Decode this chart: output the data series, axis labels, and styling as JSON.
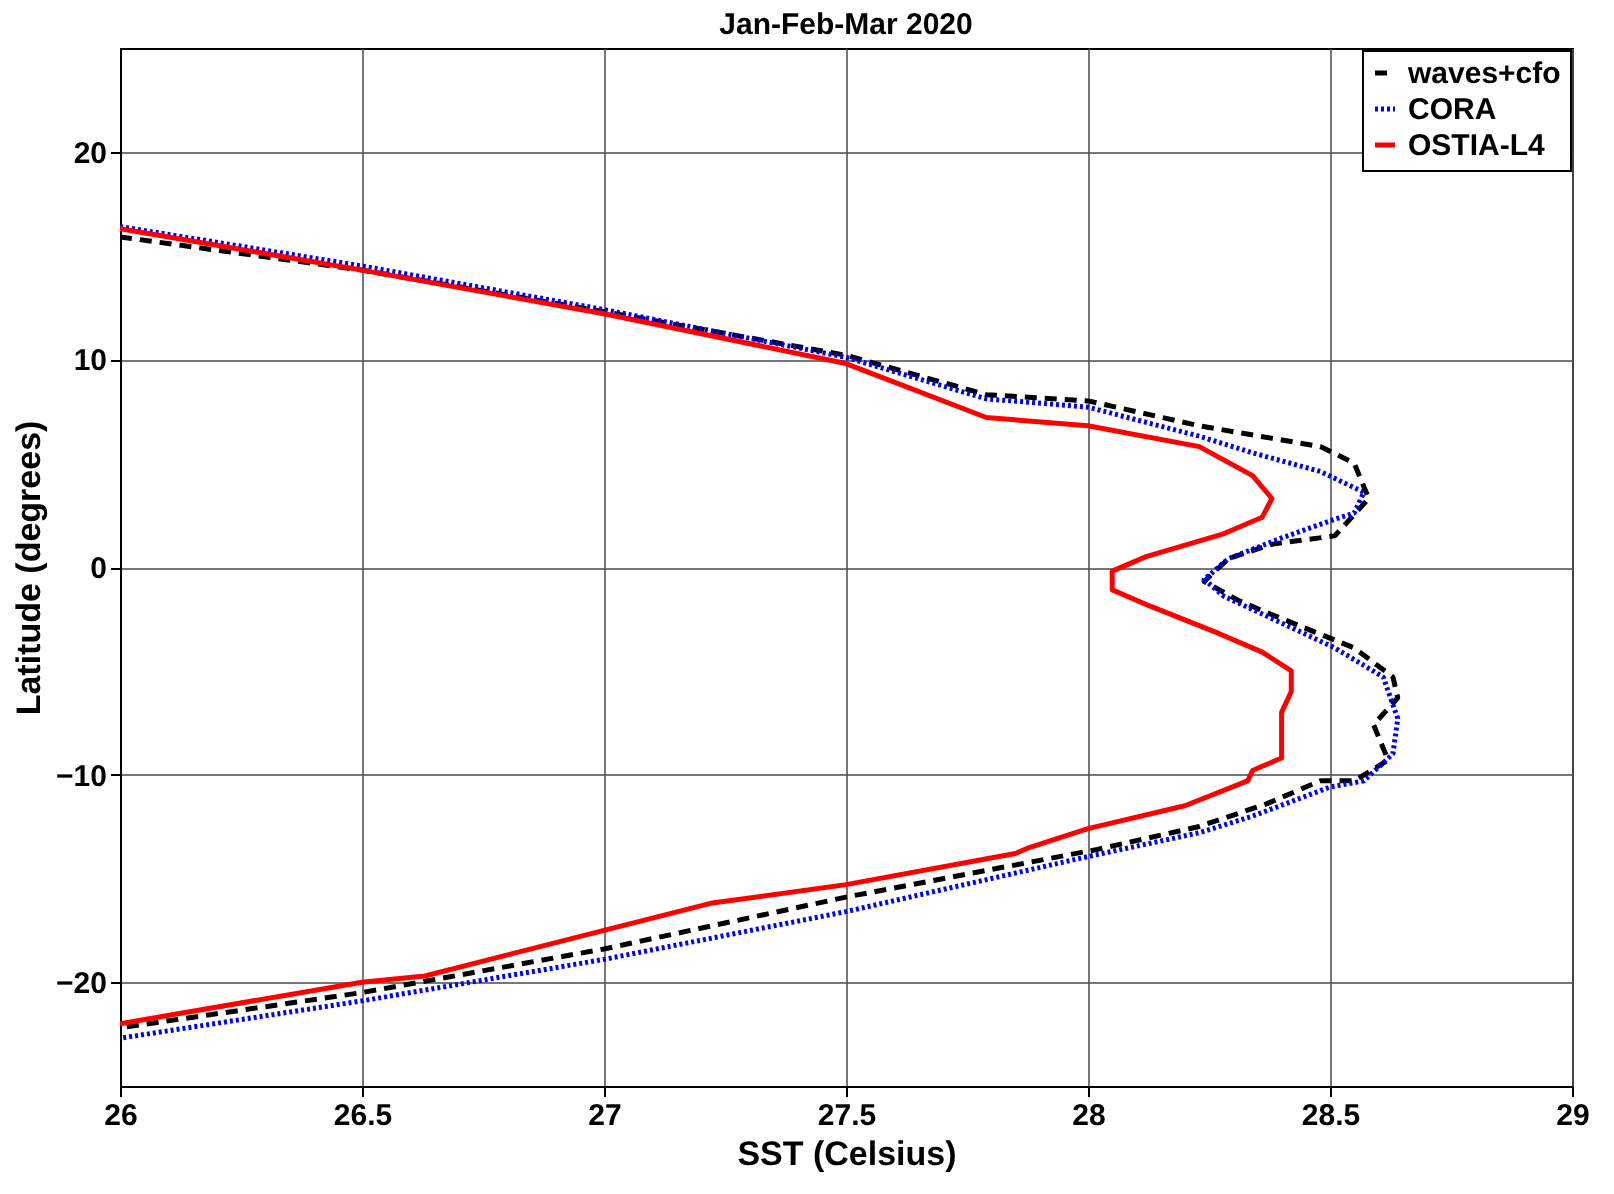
{
  "chart_data": {
    "type": "line",
    "title": "Jan-Feb-Mar 2020",
    "xlabel": "SST (Celsius)",
    "ylabel": "Latitude (degrees)",
    "xlim": [
      26,
      29
    ],
    "xticks": [
      26,
      26.5,
      27,
      27.5,
      28,
      28.5,
      29
    ],
    "ylim": [
      -25,
      25
    ],
    "yticks": [
      -20,
      -10,
      0,
      10,
      20
    ],
    "grid": true,
    "legend": "top right",
    "marker": "none",
    "series": [
      {
        "name": "waves+cfo",
        "color": "#000000",
        "line_style": "dashed",
        "x": [
          26.0,
          26.5,
          27.0,
          27.5,
          27.79,
          28.0,
          28.23,
          28.48,
          28.55,
          28.58,
          28.51,
          28.38,
          28.29,
          28.24,
          28.31,
          28.37,
          28.55,
          28.63,
          28.64,
          28.59,
          28.62,
          28.55,
          28.48,
          28.37,
          28.23,
          28.02,
          27.5,
          27.0,
          26.5,
          26.0
        ],
        "values": [
          15.9,
          14.3,
          12.3,
          10.2,
          8.3,
          8.0,
          6.8,
          5.8,
          5.0,
          3.3,
          1.5,
          1.1,
          0.4,
          -0.7,
          -1.6,
          -2.2,
          -3.9,
          -5.3,
          -6.3,
          -7.6,
          -9.3,
          -10.3,
          -10.3,
          -11.4,
          -12.5,
          -13.6,
          -15.9,
          -18.4,
          -20.5,
          -22.2
        ]
      },
      {
        "name": "CORA",
        "color": "#0000ff",
        "line_style": "dotted",
        "x": [
          26.0,
          26.5,
          27.0,
          27.5,
          27.79,
          28.0,
          28.23,
          28.34,
          28.48,
          28.57,
          28.55,
          28.51,
          28.4,
          28.29,
          28.24,
          28.28,
          28.4,
          28.51,
          28.61,
          28.64,
          28.63,
          28.57,
          28.5,
          28.34,
          28.23,
          27.99,
          27.5,
          27.0,
          26.5,
          26.0
        ],
        "values": [
          16.4,
          14.5,
          12.4,
          10.1,
          8.1,
          7.7,
          6.3,
          5.5,
          4.6,
          3.6,
          2.6,
          2.3,
          1.4,
          0.4,
          -0.6,
          -1.4,
          -2.7,
          -3.9,
          -5.3,
          -7.3,
          -9.0,
          -10.3,
          -10.6,
          -12.0,
          -12.8,
          -14.0,
          -16.6,
          -18.9,
          -20.9,
          -22.7
        ]
      },
      {
        "name": "OSTIA-L4",
        "color": "#ff0000",
        "line_style": "solid",
        "x": [
          26.0,
          26.5,
          27.0,
          27.5,
          27.79,
          28.0,
          28.23,
          28.34,
          28.38,
          28.36,
          28.28,
          28.12,
          28.05,
          28.05,
          28.13,
          28.27,
          28.36,
          28.42,
          28.42,
          28.4,
          28.4,
          28.4,
          28.34,
          28.33,
          28.2,
          28.0,
          27.88,
          27.85,
          27.5,
          27.22,
          27.0,
          26.63,
          26.5,
          26.0
        ],
        "values": [
          16.3,
          14.3,
          12.2,
          9.8,
          7.2,
          6.8,
          5.8,
          4.4,
          3.3,
          2.4,
          1.6,
          0.5,
          -0.2,
          -1.1,
          -1.9,
          -3.2,
          -4.1,
          -5.0,
          -6.0,
          -7.0,
          -8.8,
          -9.2,
          -9.8,
          -10.3,
          -11.5,
          -12.6,
          -13.5,
          -13.8,
          -15.3,
          -16.2,
          -17.5,
          -19.7,
          -20.0,
          -22.0
        ]
      }
    ]
  }
}
